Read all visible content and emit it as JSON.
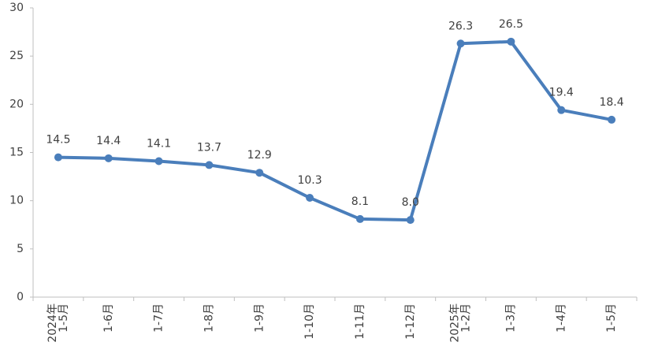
{
  "chart_data": {
    "type": "line",
    "title": "",
    "xlabel": "",
    "ylabel": "",
    "ylim": [
      0,
      30
    ],
    "yticks": [
      0,
      5,
      10,
      15,
      20,
      25,
      30
    ],
    "grid": false,
    "legend": "none",
    "categories": [
      [
        "2024年",
        "1-5月"
      ],
      [
        "1-6月"
      ],
      [
        "1-7月"
      ],
      [
        "1-8月"
      ],
      [
        "1-9月"
      ],
      [
        "1-10月"
      ],
      [
        "1-11月"
      ],
      [
        "1-12月"
      ],
      [
        "2025年",
        "1-2月"
      ],
      [
        "1-3月"
      ],
      [
        "1-4月"
      ],
      [
        "1-5月"
      ]
    ],
    "series": [
      {
        "values": [
          14.5,
          14.4,
          14.1,
          13.7,
          12.9,
          10.3,
          8.1,
          8.0,
          26.3,
          26.5,
          19.4,
          18.4
        ],
        "labels": [
          "14.5",
          "14.4",
          "14.1",
          "13.7",
          "12.9",
          "10.3",
          "8.1",
          "8.0",
          "26.3",
          "26.5",
          "19.4",
          "18.4"
        ],
        "color": "#4a7ebb"
      }
    ],
    "colors": {
      "line": "#4a7ebb",
      "axis": "#bfbfbf",
      "text": "#404040"
    }
  }
}
